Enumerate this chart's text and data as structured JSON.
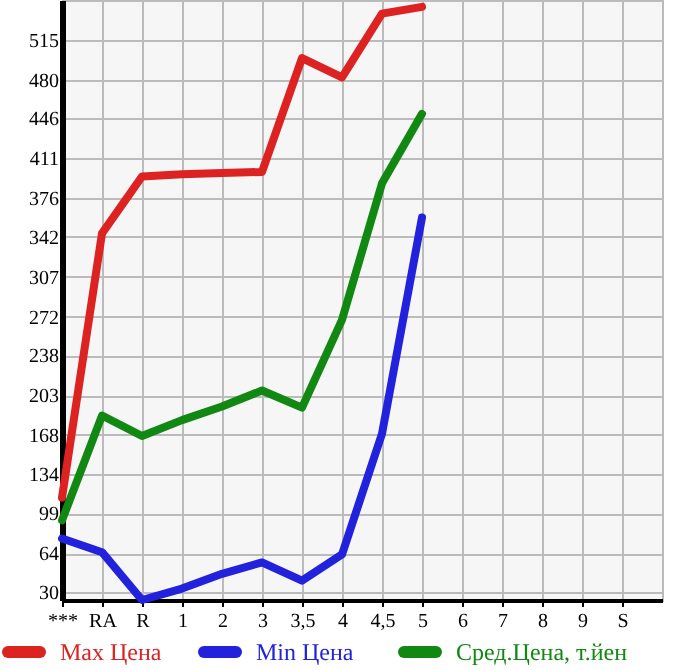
{
  "chart_data": {
    "type": "line",
    "categories": [
      "***",
      "RA",
      "R",
      "1",
      "2",
      "3",
      "3,5",
      "4",
      "4,5",
      "5",
      "6",
      "7",
      "8",
      "9",
      "S"
    ],
    "series": [
      {
        "name": "Max Цена",
        "color": "#dd2222",
        "values": [
          113,
          345,
          395,
          397,
          398,
          399,
          499,
          482,
          538,
          544,
          null,
          null,
          null,
          null,
          null
        ]
      },
      {
        "name": "Min Цена",
        "color": "#2222dd",
        "values": [
          77,
          65,
          23,
          33,
          46,
          56,
          40,
          63,
          169,
          359,
          null,
          null,
          null,
          null,
          null
        ]
      },
      {
        "name": "Сред.Цена, т.йен",
        "color": "#118811",
        "values": [
          93,
          185,
          167,
          181,
          193,
          207,
          192,
          269,
          389,
          450,
          null,
          null,
          null,
          null,
          null
        ]
      }
    ],
    "ylim": [
      23,
      550
    ],
    "yticks": [
      30,
      64,
      99,
      134,
      168,
      203,
      238,
      272,
      307,
      342,
      376,
      411,
      446,
      480,
      515
    ],
    "grid": true,
    "legend": "bottom",
    "line_style": "solid"
  }
}
